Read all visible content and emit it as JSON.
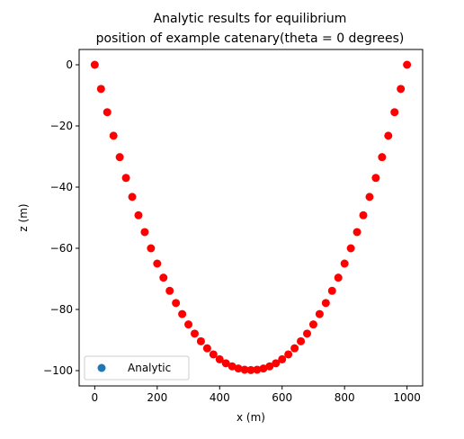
{
  "chart_data": {
    "type": "scatter",
    "title_lines": [
      "Analytic results for equilibrium",
      "position of example catenary(theta = 0 degrees)"
    ],
    "xlabel": "x (m)",
    "ylabel": "z (m)",
    "xlim": [
      -50,
      1050
    ],
    "ylim": [
      -105,
      5
    ],
    "xticks": [
      0,
      200,
      400,
      600,
      800,
      1000
    ],
    "yticks": [
      0,
      -20,
      -40,
      -60,
      -80,
      -100
    ],
    "xtick_labels": [
      "0",
      "200",
      "400",
      "600",
      "800",
      "1000"
    ],
    "ytick_labels": [
      "0",
      "−20",
      "−40",
      "−60",
      "−80",
      "−100"
    ],
    "grid": false,
    "legend": {
      "placement": "lower-left"
    },
    "series": [
      {
        "name": "Analytic",
        "legend_color": "#1f77b4",
        "color": "#ff0000",
        "x": [
          0,
          20,
          40,
          60,
          80,
          100,
          120,
          140,
          160,
          180,
          200,
          220,
          240,
          260,
          280,
          300,
          320,
          340,
          360,
          380,
          400,
          420,
          440,
          460,
          480,
          500,
          520,
          540,
          560,
          580,
          600,
          620,
          640,
          660,
          680,
          700,
          720,
          740,
          760,
          780,
          800,
          820,
          840,
          860,
          880,
          900,
          920,
          940,
          960,
          980,
          1000
        ],
        "y": [
          0,
          -7.9,
          -15.5,
          -23.2,
          -30.2,
          -37.0,
          -43.2,
          -49.2,
          -54.7,
          -60.0,
          -65.0,
          -69.6,
          -73.9,
          -77.9,
          -81.5,
          -84.9,
          -87.9,
          -90.4,
          -92.7,
          -94.7,
          -96.3,
          -97.6,
          -98.6,
          -99.3,
          -99.7,
          -99.8,
          -99.7,
          -99.3,
          -98.6,
          -97.6,
          -96.3,
          -94.7,
          -92.7,
          -90.4,
          -87.9,
          -84.9,
          -81.5,
          -77.9,
          -73.9,
          -69.6,
          -65.0,
          -60.0,
          -54.7,
          -49.2,
          -43.2,
          -37.0,
          -30.2,
          -23.2,
          -15.5,
          -7.9,
          0
        ]
      }
    ]
  }
}
